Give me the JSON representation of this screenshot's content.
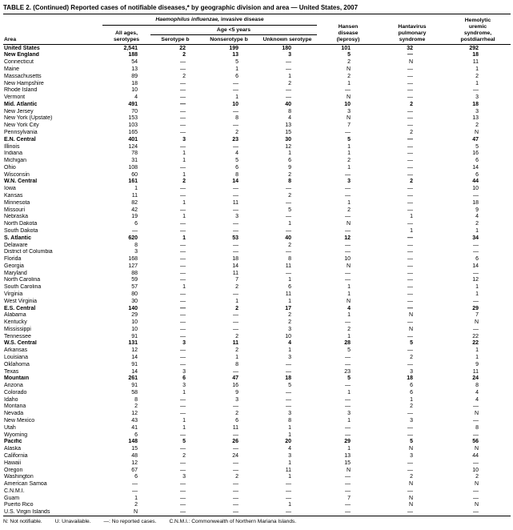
{
  "page": {
    "title": "TABLE 2. (Continued) Reported cases of notifiable diseases,* by geographic division and area — United States, 2007"
  },
  "table": {
    "header": {
      "area": "Area",
      "hi_italic": "Haemophilus influenzae,",
      "hi_rest": " invasive disease",
      "all_ages": "All ages,\nserotypes",
      "age_group": "Age <5 years",
      "serotype_b": "Serotype b",
      "nonserotype_b": "Nonserotype b",
      "unknown_serotype": "Unknown serotype",
      "hansen": "Hansen\ndisease\n(leprosy)",
      "hantavirus": "Hantavirus\npulmonary\nsyndrome",
      "hus": "Hemolytic\nuremic\nsyndrome,\npostdiarrheal"
    },
    "rows": [
      {
        "area": "United States",
        "bold": true,
        "values": [
          "2,541",
          "22",
          "199",
          "180",
          "101",
          "32",
          "292"
        ]
      },
      {
        "area": "New England",
        "bold": true,
        "values": [
          "188",
          "2",
          "13",
          "3",
          "5",
          "—",
          "18"
        ]
      },
      {
        "area": "Connecticut",
        "bold": false,
        "values": [
          "54",
          "—",
          "5",
          "—",
          "2",
          "N",
          "11"
        ]
      },
      {
        "area": "Maine",
        "bold": false,
        "values": [
          "13",
          "—",
          "1",
          "—",
          "N",
          "—",
          "1"
        ]
      },
      {
        "area": "Massachusetts",
        "bold": false,
        "values": [
          "89",
          "2",
          "6",
          "1",
          "2",
          "—",
          "2"
        ]
      },
      {
        "area": "New Hampshire",
        "bold": false,
        "values": [
          "18",
          "—",
          "—",
          "2",
          "1",
          "—",
          "1"
        ]
      },
      {
        "area": "Rhode Island",
        "bold": false,
        "values": [
          "10",
          "—",
          "—",
          "—",
          "—",
          "—",
          "—"
        ]
      },
      {
        "area": "Vermont",
        "bold": false,
        "values": [
          "4",
          "—",
          "1",
          "—",
          "N",
          "—",
          "3"
        ]
      },
      {
        "area": "Mid. Atlantic",
        "bold": true,
        "values": [
          "491",
          "—",
          "10",
          "40",
          "10",
          "2",
          "18"
        ]
      },
      {
        "area": "New Jersey",
        "bold": false,
        "values": [
          "70",
          "—",
          "—",
          "8",
          "3",
          "—",
          "3"
        ]
      },
      {
        "area": "New York (Upstate)",
        "bold": false,
        "values": [
          "153",
          "—",
          "8",
          "4",
          "N",
          "—",
          "13"
        ]
      },
      {
        "area": "New York City",
        "bold": false,
        "values": [
          "103",
          "—",
          "—",
          "13",
          "7",
          "—",
          "2"
        ]
      },
      {
        "area": "Pennsylvania",
        "bold": false,
        "values": [
          "165",
          "—",
          "2",
          "15",
          "—",
          "2",
          "N"
        ]
      },
      {
        "area": "E.N. Central",
        "bold": true,
        "values": [
          "401",
          "3",
          "23",
          "30",
          "5",
          "—",
          "47"
        ]
      },
      {
        "area": "Illinois",
        "bold": false,
        "values": [
          "124",
          "—",
          "—",
          "12",
          "1",
          "—",
          "5"
        ]
      },
      {
        "area": "Indiana",
        "bold": false,
        "values": [
          "78",
          "1",
          "4",
          "1",
          "1",
          "—",
          "16"
        ]
      },
      {
        "area": "Michigan",
        "bold": false,
        "values": [
          "31",
          "1",
          "5",
          "6",
          "2",
          "—",
          "6"
        ]
      },
      {
        "area": "Ohio",
        "bold": false,
        "values": [
          "108",
          "—",
          "6",
          "9",
          "1",
          "—",
          "14"
        ]
      },
      {
        "area": "Wisconsin",
        "bold": false,
        "values": [
          "60",
          "1",
          "8",
          "2",
          "—",
          "—",
          "6"
        ]
      },
      {
        "area": "W.N. Central",
        "bold": true,
        "values": [
          "161",
          "2",
          "14",
          "8",
          "3",
          "2",
          "44"
        ]
      },
      {
        "area": "Iowa",
        "bold": false,
        "values": [
          "1",
          "—",
          "—",
          "—",
          "—",
          "—",
          "10"
        ]
      },
      {
        "area": "Kansas",
        "bold": false,
        "values": [
          "11",
          "—",
          "—",
          "2",
          "—",
          "—",
          "—"
        ]
      },
      {
        "area": "Minnesota",
        "bold": false,
        "values": [
          "82",
          "1",
          "11",
          "—",
          "1",
          "—",
          "18"
        ]
      },
      {
        "area": "Missouri",
        "bold": false,
        "values": [
          "42",
          "—",
          "—",
          "5",
          "2",
          "—",
          "9"
        ]
      },
      {
        "area": "Nebraska",
        "bold": false,
        "values": [
          "19",
          "1",
          "3",
          "—",
          "—",
          "1",
          "4"
        ]
      },
      {
        "area": "North Dakota",
        "bold": false,
        "values": [
          "6",
          "—",
          "—",
          "1",
          "N",
          "—",
          "2"
        ]
      },
      {
        "area": "South Dakota",
        "bold": false,
        "values": [
          "—",
          "—",
          "—",
          "—",
          "—",
          "1",
          "1"
        ]
      },
      {
        "area": "S. Atlantic",
        "bold": true,
        "values": [
          "620",
          "1",
          "53",
          "40",
          "12",
          "—",
          "34"
        ]
      },
      {
        "area": "Delaware",
        "bold": false,
        "values": [
          "8",
          "—",
          "—",
          "2",
          "—",
          "—",
          "—"
        ]
      },
      {
        "area": "District of Columbia",
        "bold": false,
        "values": [
          "3",
          "—",
          "—",
          "—",
          "—",
          "—",
          "—"
        ]
      },
      {
        "area": "Florida",
        "bold": false,
        "values": [
          "168",
          "—",
          "18",
          "8",
          "10",
          "—",
          "6"
        ]
      },
      {
        "area": "Georgia",
        "bold": false,
        "values": [
          "127",
          "—",
          "14",
          "11",
          "N",
          "—",
          "14"
        ]
      },
      {
        "area": "Maryland",
        "bold": false,
        "values": [
          "88",
          "—",
          "11",
          "—",
          "—",
          "—",
          "—"
        ]
      },
      {
        "area": "North Carolina",
        "bold": false,
        "values": [
          "59",
          "—",
          "7",
          "1",
          "—",
          "—",
          "12"
        ]
      },
      {
        "area": "South Carolina",
        "bold": false,
        "values": [
          "57",
          "1",
          "2",
          "6",
          "1",
          "—",
          "1"
        ]
      },
      {
        "area": "Virginia",
        "bold": false,
        "values": [
          "80",
          "—",
          "—",
          "11",
          "1",
          "—",
          "1"
        ]
      },
      {
        "area": "West Virginia",
        "bold": false,
        "values": [
          "30",
          "—",
          "1",
          "1",
          "N",
          "—",
          "—"
        ]
      },
      {
        "area": "E.S. Central",
        "bold": true,
        "values": [
          "140",
          "—",
          "2",
          "17",
          "4",
          "—",
          "29"
        ]
      },
      {
        "area": "Alabama",
        "bold": false,
        "values": [
          "29",
          "—",
          "—",
          "2",
          "1",
          "N",
          "7"
        ]
      },
      {
        "area": "Kentucky",
        "bold": false,
        "values": [
          "10",
          "—",
          "—",
          "2",
          "—",
          "—",
          "N"
        ]
      },
      {
        "area": "Mississippi",
        "bold": false,
        "values": [
          "10",
          "—",
          "—",
          "3",
          "2",
          "N",
          "—"
        ]
      },
      {
        "area": "Tennessee",
        "bold": false,
        "values": [
          "91",
          "—",
          "2",
          "10",
          "1",
          "—",
          "22"
        ]
      },
      {
        "area": "W.S. Central",
        "bold": true,
        "values": [
          "131",
          "3",
          "11",
          "4",
          "28",
          "5",
          "22"
        ]
      },
      {
        "area": "Arkansas",
        "bold": false,
        "values": [
          "12",
          "—",
          "2",
          "1",
          "5",
          "—",
          "1"
        ]
      },
      {
        "area": "Louisiana",
        "bold": false,
        "values": [
          "14",
          "—",
          "1",
          "3",
          "—",
          "2",
          "1"
        ]
      },
      {
        "area": "Oklahoma",
        "bold": false,
        "values": [
          "91",
          "—",
          "8",
          "—",
          "—",
          "—",
          "9"
        ]
      },
      {
        "area": "Texas",
        "bold": false,
        "values": [
          "14",
          "3",
          "—",
          "—",
          "23",
          "3",
          "11"
        ]
      },
      {
        "area": "Mountain",
        "bold": true,
        "values": [
          "261",
          "6",
          "47",
          "18",
          "5",
          "18",
          "24"
        ]
      },
      {
        "area": "Arizona",
        "bold": false,
        "values": [
          "91",
          "3",
          "16",
          "5",
          "—",
          "6",
          "8"
        ]
      },
      {
        "area": "Colorado",
        "bold": false,
        "values": [
          "58",
          "1",
          "9",
          "—",
          "1",
          "6",
          "4"
        ]
      },
      {
        "area": "Idaho",
        "bold": false,
        "values": [
          "8",
          "—",
          "3",
          "—",
          "—",
          "1",
          "4"
        ]
      },
      {
        "area": "Montana",
        "bold": false,
        "values": [
          "2",
          "—",
          "—",
          "—",
          "—",
          "2",
          "—"
        ]
      },
      {
        "area": "Nevada",
        "bold": false,
        "values": [
          "12",
          "—",
          "2",
          "3",
          "3",
          "—",
          "N"
        ]
      },
      {
        "area": "New Mexico",
        "bold": false,
        "values": [
          "43",
          "1",
          "6",
          "8",
          "1",
          "3",
          "—"
        ]
      },
      {
        "area": "Utah",
        "bold": false,
        "values": [
          "41",
          "1",
          "11",
          "1",
          "—",
          "—",
          "8"
        ]
      },
      {
        "area": "Wyoming",
        "bold": false,
        "values": [
          "6",
          "—",
          "—",
          "1",
          "—",
          "—",
          "—"
        ]
      },
      {
        "area": "Pacific",
        "bold": true,
        "values": [
          "148",
          "5",
          "26",
          "20",
          "29",
          "5",
          "56"
        ]
      },
      {
        "area": "Alaska",
        "bold": false,
        "values": [
          "15",
          "—",
          "—",
          "4",
          "1",
          "N",
          "N"
        ]
      },
      {
        "area": "California",
        "bold": false,
        "values": [
          "48",
          "2",
          "24",
          "3",
          "13",
          "3",
          "44"
        ]
      },
      {
        "area": "Hawaii",
        "bold": false,
        "values": [
          "12",
          "—",
          "—",
          "1",
          "15",
          "—",
          "—"
        ]
      },
      {
        "area": "Oregon",
        "bold": false,
        "values": [
          "67",
          "—",
          "—",
          "11",
          "N",
          "—",
          "10"
        ]
      },
      {
        "area": "Washington",
        "bold": false,
        "values": [
          "6",
          "3",
          "2",
          "1",
          "—",
          "2",
          "2"
        ]
      },
      {
        "area": "American Samoa",
        "bold": false,
        "values": [
          "—",
          "—",
          "—",
          "—",
          "—",
          "N",
          "N"
        ]
      },
      {
        "area": "C.N.M.I.",
        "bold": false,
        "values": [
          "—",
          "—",
          "—",
          "—",
          "—",
          "—",
          "—"
        ]
      },
      {
        "area": "Guam",
        "bold": false,
        "values": [
          "1",
          "—",
          "—",
          "—",
          "7",
          "N",
          "—"
        ]
      },
      {
        "area": "Puerto Rico",
        "bold": false,
        "values": [
          "2",
          "—",
          "—",
          "1",
          "—",
          "N",
          "N"
        ]
      },
      {
        "area": "U.S. Virgin Islands",
        "bold": false,
        "values": [
          "N",
          "—",
          "—",
          "—",
          "—",
          "—",
          "—"
        ]
      }
    ]
  },
  "footnotes": [
    "N: Not notifiable.",
    "U: Unavailable.",
    "—: No reported cases.",
    "C.N.M.I.: Commonwealth of Northern Mariana Islands."
  ]
}
